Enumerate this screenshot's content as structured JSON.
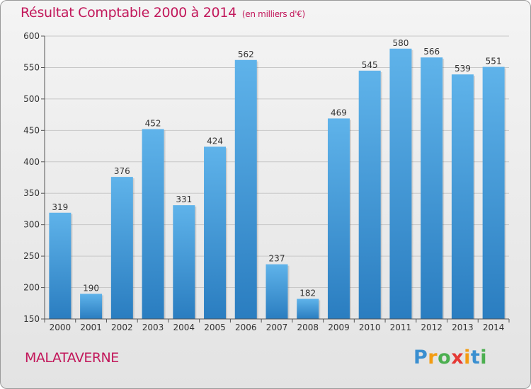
{
  "title": "Résultat Comptable 2000 à 2014",
  "unit_note": "(en milliers d'€)",
  "city": "MALATAVERNE",
  "logo": {
    "letters": [
      "P",
      "r",
      "o",
      "x",
      "i",
      "t",
      "i"
    ],
    "colors": [
      "#3a8fd0",
      "#f39c12",
      "#4caf50",
      "#e53935",
      "#f39c12",
      "#3a8fd0",
      "#4caf50"
    ]
  },
  "colors": {
    "bar_light": "#5fb3ea",
    "bar_dark": "#2a7dc0",
    "title": "#c2185b"
  },
  "chart_data": {
    "type": "bar",
    "categories": [
      "2000",
      "2001",
      "2002",
      "2003",
      "2004",
      "2005",
      "2006",
      "2007",
      "2008",
      "2009",
      "2010",
      "2011",
      "2012",
      "2013",
      "2014"
    ],
    "values": [
      319,
      190,
      376,
      452,
      331,
      424,
      562,
      237,
      182,
      469,
      545,
      580,
      566,
      539,
      551
    ],
    "title": "Résultat Comptable 2000 à 2014",
    "ylim": [
      150,
      600
    ],
    "yticks": [
      150,
      200,
      250,
      300,
      350,
      400,
      450,
      500,
      550,
      600
    ],
    "grid": true,
    "legend": "none"
  }
}
